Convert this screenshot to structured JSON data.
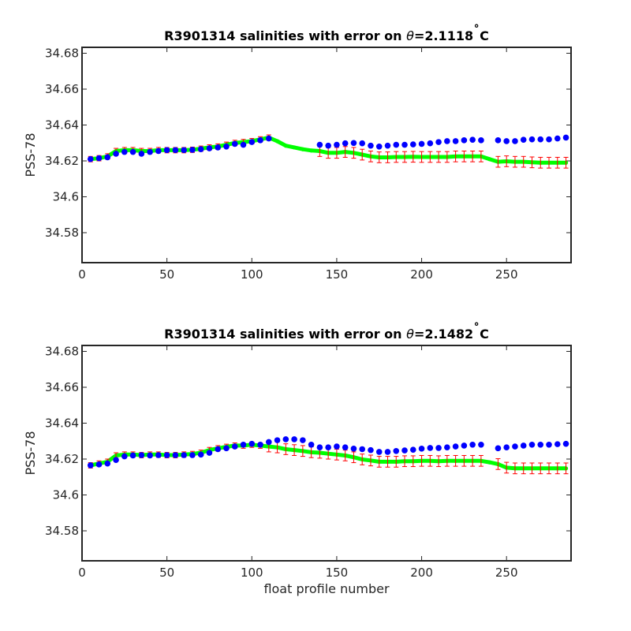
{
  "chart_data": [
    {
      "type": "scatter",
      "title_prefix": "R3901314 salinities with error on ",
      "theta_symbol": "θ",
      "theta_value": "=2.1118",
      "degree_symbol": "˚",
      "temp_unit": "C",
      "xlabel": "",
      "ylabel": "PSS-78",
      "xlim": [
        0,
        288
      ],
      "ylim": [
        34.5633,
        34.6833
      ],
      "xticks": [
        0,
        50,
        100,
        150,
        200,
        250
      ],
      "yticks": [
        34.58,
        34.6,
        34.62,
        34.64,
        34.66,
        34.68
      ],
      "ytick_labels": [
        "34.58",
        "34.6",
        "34.62",
        "34.64",
        "34.66",
        "34.68"
      ],
      "grid": false,
      "series": [
        {
          "role": "original",
          "color": "#0000ff",
          "x": [
            5,
            10,
            15,
            20,
            25,
            30,
            35,
            40,
            45,
            50,
            55,
            60,
            65,
            70,
            75,
            80,
            85,
            90,
            95,
            100,
            105,
            110,
            140,
            145,
            150,
            155,
            160,
            165,
            170,
            175,
            180,
            185,
            190,
            195,
            200,
            205,
            210,
            215,
            220,
            225,
            230,
            235,
            245,
            250,
            255,
            260,
            265,
            270,
            275,
            280,
            285
          ],
          "y": [
            34.621,
            34.6215,
            34.622,
            34.624,
            34.625,
            34.625,
            34.624,
            34.625,
            34.6255,
            34.626,
            34.626,
            34.626,
            34.6262,
            34.6265,
            34.627,
            34.6275,
            34.628,
            34.6295,
            34.629,
            34.6305,
            34.6315,
            34.6325,
            34.629,
            34.6285,
            34.629,
            34.6298,
            34.63,
            34.6298,
            34.6285,
            34.628,
            34.6285,
            34.629,
            34.629,
            34.6292,
            34.6295,
            34.6298,
            34.6305,
            34.631,
            34.631,
            34.6315,
            34.6318,
            34.6315,
            34.6315,
            34.631,
            34.631,
            34.6318,
            34.632,
            34.632,
            34.632,
            34.6325,
            34.633
          ]
        },
        {
          "role": "adjusted",
          "color": "#00ff00",
          "x": [
            5,
            10,
            15,
            20,
            25,
            30,
            35,
            40,
            45,
            50,
            55,
            60,
            65,
            70,
            75,
            80,
            85,
            90,
            95,
            100,
            105,
            110,
            115,
            120,
            125,
            130,
            135,
            140,
            145,
            150,
            155,
            160,
            165,
            170,
            175,
            180,
            185,
            190,
            195,
            200,
            205,
            210,
            215,
            220,
            225,
            230,
            235,
            240,
            245,
            250,
            255,
            260,
            265,
            270,
            275,
            280,
            285
          ],
          "y": [
            34.621,
            34.6215,
            34.6225,
            34.6255,
            34.626,
            34.626,
            34.6255,
            34.6255,
            34.626,
            34.626,
            34.626,
            34.626,
            34.6262,
            34.6268,
            34.6275,
            34.628,
            34.629,
            34.63,
            34.6305,
            34.631,
            34.632,
            34.633,
            34.631,
            34.6285,
            34.6275,
            34.6265,
            34.6258,
            34.6255,
            34.6245,
            34.6245,
            34.625,
            34.6245,
            34.6235,
            34.6225,
            34.622,
            34.622,
            34.6222,
            34.6222,
            34.6223,
            34.6222,
            34.6222,
            34.6222,
            34.6222,
            34.6225,
            34.6225,
            34.6225,
            34.6225,
            34.621,
            34.6195,
            34.6198,
            34.6195,
            34.6195,
            34.6192,
            34.619,
            34.619,
            34.619,
            34.619
          ]
        },
        {
          "role": "adjusted_with_error",
          "color": "#ff0000",
          "x": [
            5,
            10,
            15,
            20,
            25,
            30,
            35,
            40,
            45,
            50,
            55,
            60,
            65,
            70,
            75,
            80,
            85,
            90,
            95,
            100,
            105,
            110,
            140,
            145,
            150,
            155,
            160,
            165,
            170,
            175,
            180,
            185,
            190,
            195,
            200,
            205,
            210,
            215,
            220,
            225,
            230,
            235,
            245,
            250,
            255,
            260,
            265,
            270,
            275,
            280,
            285
          ],
          "y": [
            34.621,
            34.6215,
            34.6225,
            34.6255,
            34.626,
            34.626,
            34.6255,
            34.6255,
            34.626,
            34.626,
            34.626,
            34.626,
            34.6262,
            34.6268,
            34.6275,
            34.628,
            34.629,
            34.63,
            34.6305,
            34.631,
            34.632,
            34.633,
            34.6255,
            34.6245,
            34.6245,
            34.625,
            34.6245,
            34.6235,
            34.6225,
            34.622,
            34.622,
            34.6222,
            34.6222,
            34.6223,
            34.6222,
            34.6222,
            34.6222,
            34.6222,
            34.6225,
            34.6225,
            34.6225,
            34.6225,
            34.6195,
            34.6198,
            34.6195,
            34.6195,
            34.6192,
            34.619,
            34.619,
            34.619,
            34.619
          ],
          "error": [
            0.0015,
            0.0015,
            0.0015,
            0.0015,
            0.0015,
            0.0015,
            0.0015,
            0.0015,
            0.0015,
            0.0015,
            0.0015,
            0.0015,
            0.0015,
            0.0015,
            0.0015,
            0.0015,
            0.0015,
            0.0015,
            0.0015,
            0.0015,
            0.0015,
            0.0015,
            0.003,
            0.003,
            0.003,
            0.003,
            0.003,
            0.003,
            0.003,
            0.003,
            0.003,
            0.003,
            0.003,
            0.003,
            0.003,
            0.003,
            0.003,
            0.003,
            0.003,
            0.003,
            0.003,
            0.003,
            0.003,
            0.003,
            0.003,
            0.003,
            0.003,
            0.003,
            0.003,
            0.003,
            0.003
          ]
        }
      ]
    },
    {
      "type": "scatter",
      "title_prefix": "R3901314 salinities with error on ",
      "theta_symbol": "θ",
      "theta_value": "=2.1482",
      "degree_symbol": "˚",
      "temp_unit": "C",
      "xlabel": "float profile number",
      "ylabel": "PSS-78",
      "xlim": [
        0,
        288
      ],
      "ylim": [
        34.5633,
        34.6833
      ],
      "xticks": [
        0,
        50,
        100,
        150,
        200,
        250
      ],
      "yticks": [
        34.58,
        34.6,
        34.62,
        34.64,
        34.66,
        34.68
      ],
      "ytick_labels": [
        "34.58",
        "34.6",
        "34.62",
        "34.64",
        "34.66",
        "34.68"
      ],
      "grid": false,
      "series": [
        {
          "role": "original",
          "color": "#0000ff",
          "x": [
            5,
            10,
            15,
            20,
            25,
            30,
            35,
            40,
            45,
            50,
            55,
            60,
            65,
            70,
            75,
            80,
            85,
            90,
            95,
            100,
            105,
            110,
            115,
            120,
            125,
            130,
            135,
            140,
            145,
            150,
            155,
            160,
            165,
            170,
            175,
            180,
            185,
            190,
            195,
            200,
            205,
            210,
            215,
            220,
            225,
            230,
            235,
            245,
            250,
            255,
            260,
            265,
            270,
            275,
            280,
            285
          ],
          "y": [
            34.6165,
            34.617,
            34.6175,
            34.6195,
            34.6215,
            34.622,
            34.6222,
            34.622,
            34.6222,
            34.6222,
            34.6222,
            34.6222,
            34.6222,
            34.6225,
            34.6235,
            34.6255,
            34.626,
            34.627,
            34.628,
            34.6285,
            34.628,
            34.6295,
            34.6305,
            34.631,
            34.631,
            34.6305,
            34.628,
            34.6265,
            34.6265,
            34.627,
            34.6265,
            34.6258,
            34.6255,
            34.625,
            34.624,
            34.624,
            34.6245,
            34.6248,
            34.6252,
            34.6258,
            34.6262,
            34.6262,
            34.6265,
            34.627,
            34.6275,
            34.628,
            34.628,
            34.626,
            34.6265,
            34.627,
            34.6275,
            34.628,
            34.628,
            34.628,
            34.6283,
            34.6285
          ]
        },
        {
          "role": "adjusted",
          "color": "#00ff00",
          "x": [
            5,
            10,
            15,
            20,
            25,
            30,
            35,
            40,
            45,
            50,
            55,
            60,
            65,
            70,
            75,
            80,
            85,
            90,
            95,
            100,
            105,
            110,
            115,
            120,
            125,
            130,
            135,
            140,
            145,
            150,
            155,
            160,
            165,
            170,
            175,
            180,
            185,
            190,
            195,
            200,
            205,
            210,
            215,
            220,
            225,
            230,
            235,
            240,
            245,
            250,
            255,
            260,
            265,
            270,
            275,
            280,
            285
          ],
          "y": [
            34.6165,
            34.6175,
            34.6185,
            34.622,
            34.6225,
            34.6225,
            34.6222,
            34.6225,
            34.6225,
            34.6222,
            34.6222,
            34.6225,
            34.6228,
            34.6235,
            34.625,
            34.626,
            34.6268,
            34.6275,
            34.6275,
            34.628,
            34.6275,
            34.627,
            34.6265,
            34.6255,
            34.625,
            34.6245,
            34.6238,
            34.6235,
            34.623,
            34.6225,
            34.622,
            34.621,
            34.6198,
            34.6192,
            34.6185,
            34.6185,
            34.6185,
            34.6188,
            34.6188,
            34.619,
            34.619,
            34.6188,
            34.619,
            34.619,
            34.619,
            34.619,
            34.619,
            34.6182,
            34.6172,
            34.6152,
            34.6148,
            34.6148,
            34.6148,
            34.6148,
            34.6148,
            34.6148,
            34.6148
          ]
        },
        {
          "role": "adjusted_with_error",
          "color": "#ff0000",
          "x": [
            5,
            10,
            15,
            20,
            25,
            30,
            35,
            40,
            45,
            50,
            55,
            60,
            65,
            70,
            75,
            80,
            85,
            90,
            95,
            100,
            105,
            110,
            115,
            120,
            125,
            130,
            135,
            140,
            145,
            150,
            155,
            160,
            165,
            170,
            175,
            180,
            185,
            190,
            195,
            200,
            205,
            210,
            215,
            220,
            225,
            230,
            235,
            245,
            250,
            255,
            260,
            265,
            270,
            275,
            280,
            285
          ],
          "y": [
            34.6165,
            34.6175,
            34.6185,
            34.622,
            34.6225,
            34.6225,
            34.6222,
            34.6225,
            34.6225,
            34.6222,
            34.6222,
            34.6225,
            34.6228,
            34.6235,
            34.625,
            34.626,
            34.6268,
            34.6275,
            34.6275,
            34.628,
            34.6275,
            34.627,
            34.6265,
            34.6255,
            34.625,
            34.6245,
            34.6238,
            34.6235,
            34.623,
            34.6225,
            34.622,
            34.621,
            34.6198,
            34.6192,
            34.6185,
            34.6185,
            34.6185,
            34.6188,
            34.6188,
            34.619,
            34.619,
            34.6188,
            34.619,
            34.619,
            34.619,
            34.619,
            34.619,
            34.6172,
            34.6152,
            34.6148,
            34.6148,
            34.6148,
            34.6148,
            34.6148,
            34.6148,
            34.6148
          ],
          "error": [
            0.0015,
            0.0015,
            0.0015,
            0.0015,
            0.0015,
            0.0015,
            0.0015,
            0.0015,
            0.0015,
            0.0015,
            0.0015,
            0.0015,
            0.0015,
            0.0015,
            0.0015,
            0.0015,
            0.0015,
            0.0015,
            0.0015,
            0.0015,
            0.0015,
            0.003,
            0.003,
            0.003,
            0.003,
            0.003,
            0.003,
            0.003,
            0.003,
            0.003,
            0.003,
            0.003,
            0.003,
            0.003,
            0.003,
            0.003,
            0.003,
            0.003,
            0.003,
            0.003,
            0.003,
            0.003,
            0.003,
            0.003,
            0.003,
            0.003,
            0.003,
            0.003,
            0.003,
            0.003,
            0.003,
            0.003,
            0.003,
            0.003,
            0.003,
            0.003
          ]
        }
      ]
    }
  ]
}
